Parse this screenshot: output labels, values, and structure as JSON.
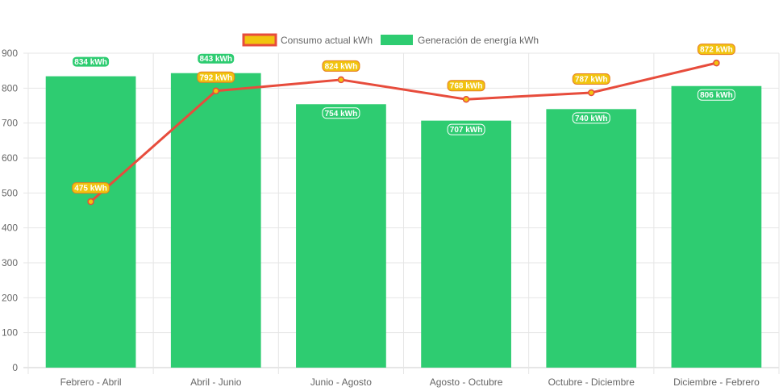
{
  "chart_data": {
    "type": "bar",
    "categories": [
      "Febrero - Abril",
      "Abril - Junio",
      "Junio - Agosto",
      "Agosto - Octubre",
      "Octubre - Diciembre",
      "Diciembre - Febrero"
    ],
    "ylim": [
      0,
      900
    ],
    "yticks": [
      0,
      100,
      200,
      300,
      400,
      500,
      600,
      700,
      800,
      900
    ],
    "grid": true,
    "legend_position": "top",
    "series": [
      {
        "name": "Consumo actual kWh",
        "type": "line",
        "values": [
          475,
          792,
          824,
          768,
          787,
          872
        ],
        "labels": [
          "475 kWh",
          "792 kWh",
          "824 kWh",
          "768 kWh",
          "787 kWh",
          "872 kWh"
        ],
        "color": "#e74c3c",
        "fill": "#f1c40f"
      },
      {
        "name": "Generación de energía kWh",
        "type": "bar",
        "values": [
          834,
          843,
          754,
          707,
          740,
          806
        ],
        "labels": [
          "834 kWh",
          "843 kWh",
          "754 kWh",
          "707 kWh",
          "740 kWh",
          "806 kWh"
        ],
        "color": "#2ecc71"
      }
    ]
  }
}
